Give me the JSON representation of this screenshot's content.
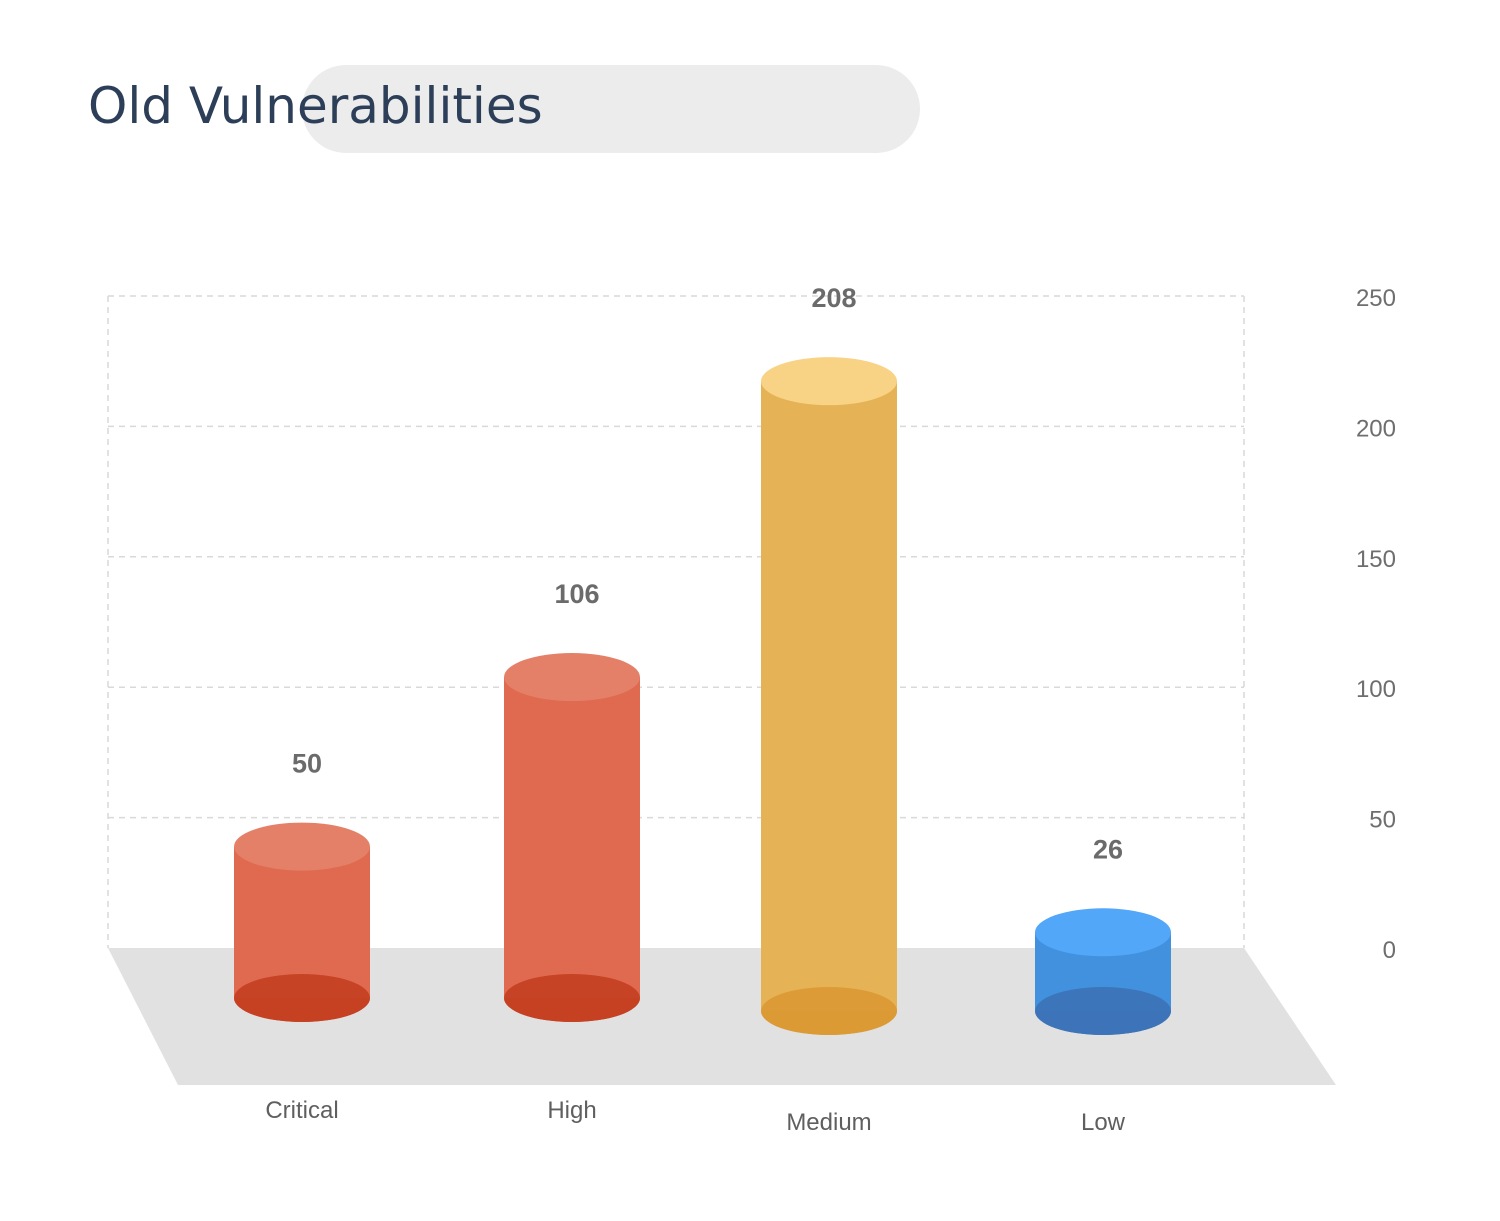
{
  "chart_data": {
    "type": "bar",
    "style": "3d-cylinder",
    "title": "Old Vulnerabilities",
    "categories": [
      "Critical",
      "High",
      "Medium",
      "Low"
    ],
    "values": [
      50,
      106,
      208,
      26
    ],
    "colors": {
      "Critical": {
        "body": "#e06a50",
        "top": "#e48068",
        "bottom": "#c54123"
      },
      "High": {
        "body": "#e06a50",
        "top": "#e48068",
        "bottom": "#c54123"
      },
      "Medium": {
        "body": "#e6b256",
        "top": "#f8d386",
        "bottom": "#db9a35"
      },
      "Low": {
        "body": "#4291de",
        "top": "#53a7f8",
        "bottom": "#3d74b8"
      }
    },
    "ylim": [
      0,
      250
    ],
    "yticks": [
      0,
      50,
      100,
      150,
      200,
      250
    ],
    "y_axis_side": "right",
    "grid": true,
    "floor_color": "#e1e1e1",
    "grid_color": "#d9d9d9"
  }
}
